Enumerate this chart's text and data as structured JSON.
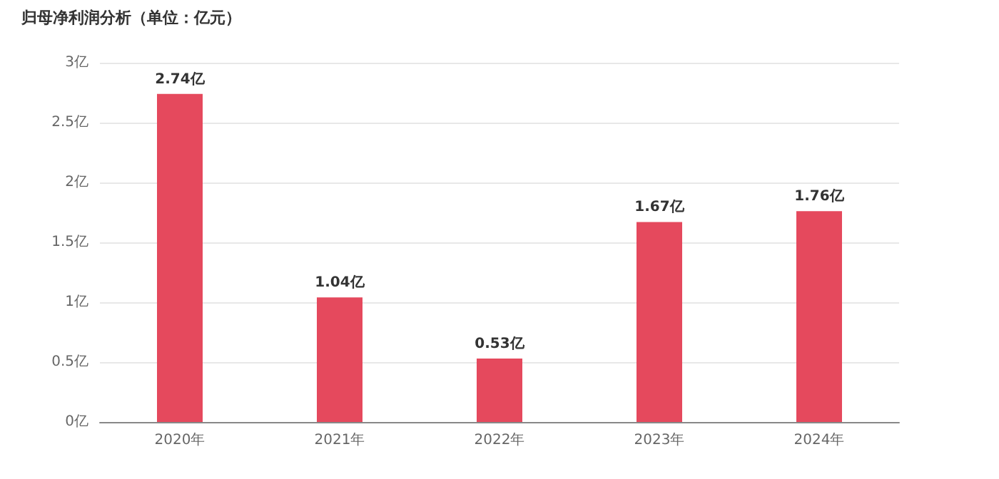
{
  "chart_data": {
    "type": "bar",
    "title": "归母净利润分析（单位：亿元）",
    "categories": [
      "2020年",
      "2021年",
      "2022年",
      "2023年",
      "2024年"
    ],
    "values": [
      2.74,
      1.04,
      0.53,
      1.67,
      1.76
    ],
    "value_labels": [
      "2.74亿",
      "1.04亿",
      "0.53亿",
      "1.67亿",
      "1.76亿"
    ],
    "color": "#e5495d",
    "ylim": [
      0,
      3
    ],
    "yticks": [
      {
        "value": 0,
        "label": "0亿"
      },
      {
        "value": 0.5,
        "label": "0.5亿"
      },
      {
        "value": 1,
        "label": "1亿"
      },
      {
        "value": 1.5,
        "label": "1.5亿"
      },
      {
        "value": 2,
        "label": "2亿"
      },
      {
        "value": 2.5,
        "label": "2.5亿"
      },
      {
        "value": 3,
        "label": "3亿"
      }
    ],
    "grid": true
  }
}
